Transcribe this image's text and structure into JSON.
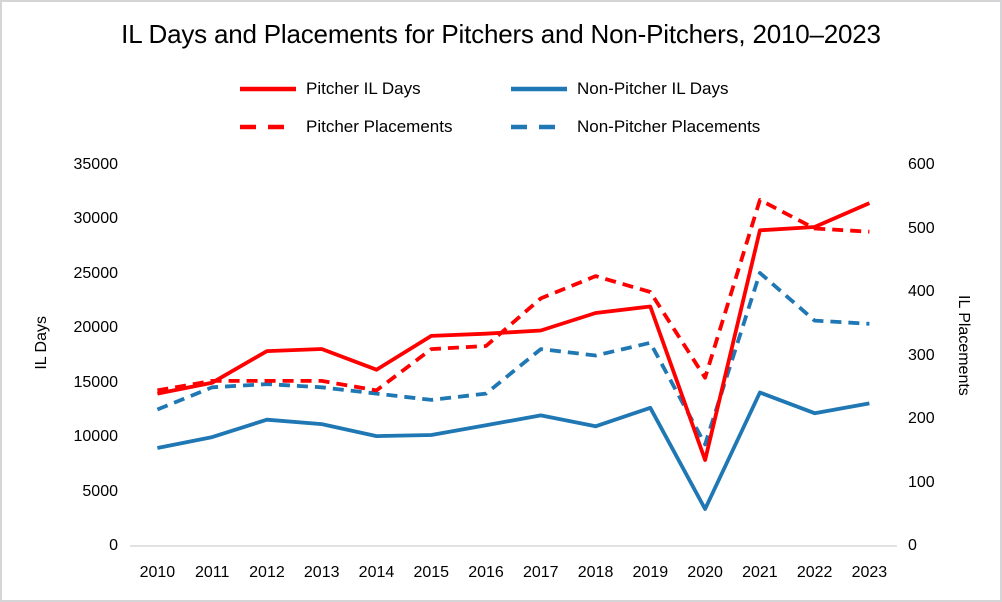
{
  "title": "IL Days and Placements for Pitchers and Non-Pitchers, 2010–2023",
  "colors": {
    "pitcher_red": "#ff0000",
    "non_pitcher_blue": "#1f77b4",
    "axis_line": "#d9d9d9",
    "text": "#000000"
  },
  "legend": [
    {
      "label": "Pitcher IL Days",
      "color": "#ff0000",
      "style": "solid"
    },
    {
      "label": "Non-Pitcher IL Days",
      "color": "#1f77b4",
      "style": "solid"
    },
    {
      "label": "Pitcher Placements",
      "color": "#ff0000",
      "style": "dashed"
    },
    {
      "label": "Non-Pitcher Placements",
      "color": "#1f77b4",
      "style": "dashed"
    }
  ],
  "chart_data": {
    "type": "line",
    "title": "IL Days and Placements for Pitchers and Non-Pitchers, 2010–2023",
    "categories": [
      "2010",
      "2011",
      "2012",
      "2013",
      "2014",
      "2015",
      "2016",
      "2017",
      "2018",
      "2019",
      "2020",
      "2021",
      "2022",
      "2023"
    ],
    "series": [
      {
        "name": "Pitcher IL Days",
        "axis": "left",
        "style": "solid",
        "color": "#ff0000",
        "values": [
          14000,
          15000,
          17900,
          18100,
          16200,
          19300,
          19500,
          19800,
          21400,
          22000,
          7900,
          29000,
          29300,
          31500
        ]
      },
      {
        "name": "Non-Pitcher IL Days",
        "axis": "left",
        "style": "solid",
        "color": "#1f77b4",
        "values": [
          9000,
          10000,
          11600,
          11200,
          10100,
          10200,
          11100,
          12000,
          11000,
          12700,
          3400,
          14100,
          12200,
          13100
        ]
      },
      {
        "name": "Pitcher Placements",
        "axis": "right",
        "style": "dashed",
        "color": "#ff0000",
        "values": [
          245,
          260,
          260,
          260,
          245,
          310,
          315,
          390,
          425,
          400,
          265,
          545,
          500,
          495
        ]
      },
      {
        "name": "Non-Pitcher Placements",
        "axis": "right",
        "style": "dashed",
        "color": "#1f77b4",
        "values": [
          215,
          250,
          255,
          250,
          240,
          230,
          240,
          310,
          300,
          320,
          160,
          430,
          355,
          350
        ]
      }
    ],
    "left_axis": {
      "label": "IL Days",
      "min": 0,
      "max": 35000,
      "step": 5000,
      "ticks": [
        "0",
        "5000",
        "10000",
        "15000",
        "20000",
        "25000",
        "30000",
        "35000"
      ]
    },
    "right_axis": {
      "label": "IL Placements",
      "min": 0,
      "max": 600,
      "step": 100,
      "ticks": [
        "0",
        "100",
        "200",
        "300",
        "400",
        "500",
        "600"
      ]
    },
    "grid": false,
    "legend_position": "top"
  }
}
